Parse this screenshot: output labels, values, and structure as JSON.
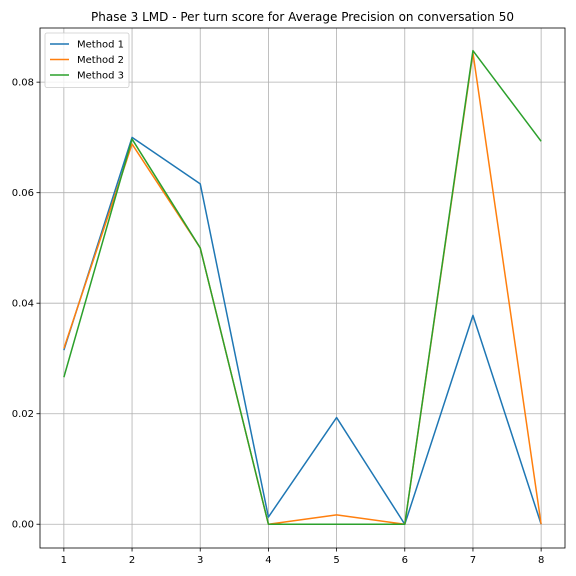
{
  "chart_data": {
    "type": "line",
    "title": "Phase 3 LMD - Per turn score for Average Precision on conversation 50",
    "xlabel": "",
    "ylabel": "",
    "x": [
      1,
      2,
      3,
      4,
      5,
      6,
      7,
      8
    ],
    "xticks": [
      "1",
      "2",
      "3",
      "4",
      "5",
      "6",
      "7",
      "8"
    ],
    "yticks": [
      "0.00",
      "0.02",
      "0.04",
      "0.06",
      "0.08"
    ],
    "xlim": [
      0.65,
      8.35
    ],
    "ylim": [
      -0.0043,
      0.0898
    ],
    "grid": true,
    "legend_position": "top-left",
    "series": [
      {
        "name": "Method 1",
        "color": "#1f77b4",
        "values": [
          0.0315,
          0.07,
          0.0616,
          0.0013,
          0.0193,
          0.0,
          0.0378,
          0.0
        ]
      },
      {
        "name": "Method 2",
        "color": "#ff7f0e",
        "values": [
          0.0318,
          0.0688,
          0.05,
          0.0,
          0.0017,
          0.0,
          0.0853,
          0.0
        ]
      },
      {
        "name": "Method 3",
        "color": "#2ca02c",
        "values": [
          0.0266,
          0.0697,
          0.05,
          0.0,
          0.0,
          0.0,
          0.0857,
          0.0693
        ]
      }
    ]
  }
}
